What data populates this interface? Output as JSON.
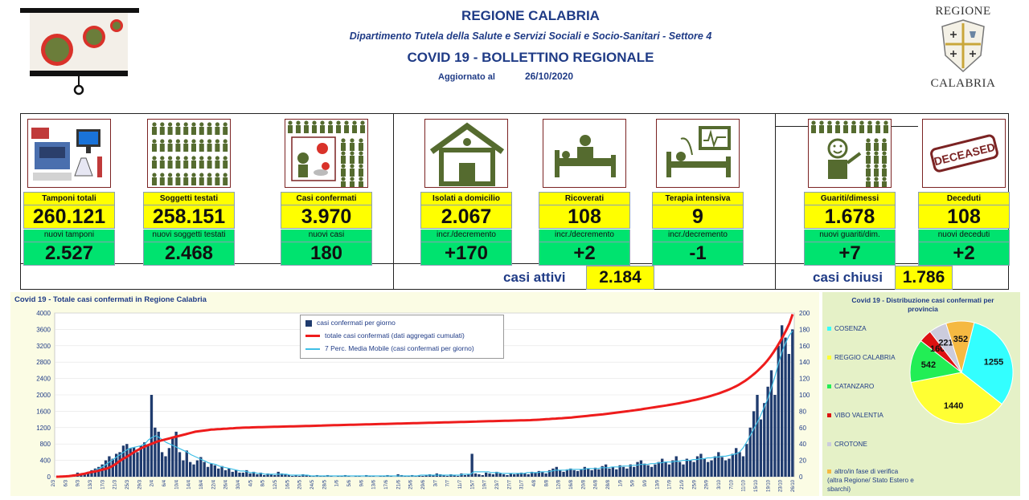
{
  "header": {
    "region": "REGIONE CALABRIA",
    "department": "Dipartimento Tutela della Salute e Servizi Sociali e Socio-Sanitari - Settore 4",
    "bulletin": "COVID 19 - BOLLETTINO REGIONALE",
    "updated_label": "Aggiornato al",
    "updated_date": "26/10/2020",
    "logo_top": "REGIONE",
    "logo_bottom": "CALABRIA"
  },
  "cards": [
    {
      "label": "Tamponi totali",
      "value": "260.121",
      "sublabel": "nuovi tamponi",
      "delta": "2.527",
      "icon": "lab-equipment-icon"
    },
    {
      "label": "Soggetti testati",
      "value": "258.151",
      "sublabel": "nuovi soggetti testati",
      "delta": "2.468",
      "icon": "people-grid-icon"
    },
    {
      "label": "Casi confermati",
      "value": "3.970",
      "sublabel": "nuovi casi",
      "delta": "180",
      "icon": "infected-person-icon"
    },
    {
      "label": "Isolati a domicilio",
      "value": "2.067",
      "sublabel": "incr./decremento",
      "delta": "+170",
      "icon": "house-icon"
    },
    {
      "label": "Ricoverati",
      "value": "108",
      "sublabel": "incr./decremento",
      "delta": "+2",
      "icon": "hospital-bed-icon"
    },
    {
      "label": "Terapia intensiva",
      "value": "9",
      "sublabel": "incr./decremento",
      "delta": "-1",
      "icon": "intensive-care-icon"
    },
    {
      "label": "Guariti/dimessi",
      "value": "1.678",
      "sublabel": "nuovi guariti/dim.",
      "delta": "+7",
      "icon": "recovered-person-icon"
    },
    {
      "label": "Deceduti",
      "value": "108",
      "sublabel": "nuovi deceduti",
      "delta": "+2",
      "icon": "deceased-stamp-icon"
    }
  ],
  "deceased_stamp": "DECEASED",
  "summary": {
    "active_label": "casi attivi",
    "active_value": "2.184",
    "closed_label": "casi chiusi",
    "closed_value": "1.786"
  },
  "colors": {
    "title_blue": "#1f3b86",
    "yellow": "#ffff00",
    "green": "#00e36f",
    "bar_navy": "#1f3b6e",
    "line_red": "#ee1c1c",
    "line_cyan": "#3fbfe6"
  },
  "chart_data": [
    {
      "type": "bar+line",
      "title": "Covid 19 - Totale casi confermati in Regione Calabria",
      "legend": [
        "casi confermati per giorno",
        "totale casi confermati (dati aggregati cumulati)",
        "7 Perc. Media Mobile (casi confermati per giorno)"
      ],
      "legend_position": "top-center",
      "y_left_ticks": [
        "0",
        "400",
        "800",
        "1200",
        "1600",
        "2000",
        "2400",
        "2800",
        "3200",
        "3600",
        "4000"
      ],
      "y_left_range": [
        0,
        4000
      ],
      "y_right_ticks": [
        "0",
        "20",
        "40",
        "60",
        "80",
        "100",
        "120",
        "140",
        "160",
        "180",
        "200"
      ],
      "y_right_range": [
        0,
        200
      ],
      "x_range": [
        "2/3",
        "26/10"
      ],
      "x_ticks": [
        "2/3",
        "6/3",
        "9/3",
        "13/3",
        "17/3",
        "21/3",
        "25/3",
        "29/3",
        "2/4",
        "6/4",
        "10/4",
        "14/4",
        "18/4",
        "22/4",
        "26/4",
        "30/4",
        "4/5",
        "8/5",
        "12/5",
        "16/5",
        "20/5",
        "24/5",
        "28/5",
        "1/6",
        "5/6",
        "9/6",
        "13/6",
        "17/6",
        "21/6",
        "25/6",
        "29/6",
        "3/7",
        "7/7",
        "11/7",
        "15/7",
        "19/7",
        "23/7",
        "27/7",
        "31/7",
        "4/8",
        "8/8",
        "12/8",
        "16/8",
        "20/8",
        "24/8",
        "28/8",
        "1/9",
        "5/9",
        "9/9",
        "13/9",
        "17/9",
        "21/9",
        "25/9",
        "29/9",
        "3/10",
        "7/10",
        "11/10",
        "15/10",
        "19/10",
        "23/10",
        "26/10"
      ],
      "series": [
        {
          "name": "totale casi confermati (dati aggregati cumulati)",
          "axis": "left",
          "values": [
            0,
            2,
            5,
            10,
            15,
            25,
            35,
            45,
            60,
            75,
            95,
            110,
            125,
            140,
            160,
            180,
            200,
            230,
            270,
            320,
            380,
            430,
            470,
            520,
            570,
            620,
            660,
            700,
            735,
            770,
            800,
            830,
            860,
            880,
            900,
            920,
            940,
            960,
            980,
            1000,
            1020,
            1040,
            1060,
            1080,
            1100,
            1110,
            1120,
            1130,
            1140,
            1150,
            1155,
            1160,
            1165,
            1170,
            1175,
            1180,
            1185,
            1190,
            1195,
            1198,
            1200,
            1202,
            1205,
            1208,
            1210,
            1212,
            1214,
            1216,
            1218,
            1220,
            1222,
            1224,
            1226,
            1228,
            1230,
            1232,
            1234,
            1236,
            1238,
            1240,
            1242,
            1244,
            1246,
            1248,
            1250,
            1252,
            1254,
            1256,
            1258,
            1260,
            1262,
            1264,
            1266,
            1268,
            1270,
            1272,
            1274,
            1276,
            1278,
            1280,
            1282,
            1284,
            1286,
            1288,
            1290,
            1292,
            1294,
            1296,
            1298,
            1300,
            1302,
            1304,
            1306,
            1308,
            1310,
            1312,
            1314,
            1316,
            1318,
            1320,
            1322,
            1324,
            1326,
            1328,
            1330,
            1332,
            1334,
            1336,
            1338,
            1340,
            1342,
            1344,
            1346,
            1348,
            1350,
            1352,
            1354,
            1356,
            1358,
            1360,
            1362,
            1364,
            1366,
            1368,
            1370,
            1372,
            1374,
            1376,
            1378,
            1380,
            1383,
            1386,
            1390,
            1395,
            1400,
            1405,
            1410,
            1415,
            1420,
            1425,
            1430,
            1436,
            1442,
            1448,
            1455,
            1462,
            1470,
            1478,
            1486,
            1494,
            1502,
            1510,
            1518,
            1526,
            1535,
            1544,
            1553,
            1562,
            1572,
            1582,
            1592,
            1602,
            1613,
            1624,
            1635,
            1646,
            1658,
            1670,
            1682,
            1694,
            1706,
            1718,
            1730,
            1742,
            1754,
            1766,
            1780,
            1795,
            1810,
            1826,
            1842,
            1858,
            1875,
            1892,
            1910,
            1930,
            1950,
            1972,
            1996,
            2020,
            2046,
            2074,
            2104,
            2136,
            2170,
            2208,
            2250,
            2296,
            2346,
            2400,
            2460,
            2525,
            2595,
            2670,
            2750,
            2840,
            2940,
            3050,
            3170,
            3300,
            3440,
            3590,
            3750,
            3970
          ]
        },
        {
          "name": "casi confermati per giorno",
          "axis": "right",
          "values": [
            0,
            1,
            0,
            1,
            2,
            3,
            5,
            2,
            4,
            6,
            8,
            10,
            12,
            15,
            20,
            25,
            22,
            28,
            30,
            38,
            40,
            35,
            36,
            30,
            38,
            42,
            38,
            100,
            60,
            55,
            30,
            25,
            35,
            48,
            55,
            30,
            20,
            32,
            18,
            15,
            20,
            24,
            18,
            12,
            16,
            14,
            10,
            13,
            8,
            10,
            6,
            8,
            5,
            5,
            8,
            4,
            6,
            3,
            5,
            2,
            4,
            3,
            2,
            6,
            4,
            3,
            2,
            1,
            2,
            1,
            3,
            2,
            1,
            1,
            2,
            1,
            1,
            2,
            1,
            0,
            1,
            1,
            2,
            1,
            0,
            1,
            1,
            0,
            2,
            1,
            1,
            0,
            1,
            1,
            2,
            1,
            0,
            3,
            2,
            1,
            1,
            2,
            1,
            2,
            1,
            2,
            3,
            2,
            4,
            3,
            2,
            1,
            3,
            2,
            1,
            4,
            2,
            3,
            28,
            4,
            3,
            2,
            5,
            4,
            3,
            6,
            4,
            3,
            2,
            4,
            3,
            4,
            5,
            4,
            3,
            6,
            5,
            7,
            6,
            4,
            8,
            10,
            12,
            8,
            6,
            9,
            10,
            8,
            7,
            9,
            12,
            10,
            8,
            11,
            9,
            13,
            15,
            10,
            12,
            9,
            14,
            12,
            10,
            15,
            12,
            18,
            20,
            16,
            14,
            12,
            15,
            18,
            22,
            18,
            15,
            20,
            25,
            18,
            15,
            22,
            20,
            18,
            25,
            28,
            22,
            18,
            20,
            25,
            30,
            24,
            20,
            22,
            28,
            35,
            30,
            25,
            40,
            60,
            80,
            100,
            70,
            90,
            110,
            130,
            100,
            160,
            185,
            170,
            150,
            180
          ]
        },
        {
          "name": "7 Perc. Media Mobile (casi confermati per giorno)",
          "axis": "right",
          "values": [
            0,
            0,
            1,
            1,
            1,
            2,
            3,
            3,
            4,
            5,
            6,
            8,
            10,
            12,
            15,
            18,
            21,
            24,
            27,
            30,
            33,
            35,
            36,
            37,
            38,
            40,
            45,
            48,
            50,
            48,
            45,
            42,
            40,
            38,
            36,
            34,
            32,
            30,
            27,
            25,
            23,
            21,
            19,
            17,
            16,
            15,
            13,
            12,
            11,
            10,
            9,
            8,
            7,
            7,
            6,
            5,
            5,
            4,
            4,
            3,
            3,
            3,
            3,
            3,
            3,
            3,
            2,
            2,
            2,
            2,
            2,
            2,
            1,
            1,
            1,
            1,
            1,
            1,
            1,
            1,
            1,
            1,
            1,
            1,
            1,
            1,
            1,
            1,
            1,
            1,
            1,
            1,
            1,
            1,
            1,
            1,
            1,
            1,
            1,
            1,
            1,
            1,
            1,
            2,
            2,
            2,
            2,
            2,
            2,
            2,
            2,
            2,
            2,
            2,
            2,
            3,
            3,
            3,
            6,
            6,
            6,
            6,
            6,
            5,
            5,
            5,
            4,
            4,
            4,
            4,
            4,
            4,
            4,
            5,
            5,
            5,
            5,
            6,
            6,
            6,
            7,
            8,
            8,
            8,
            8,
            9,
            9,
            9,
            9,
            9,
            10,
            10,
            10,
            10,
            11,
            11,
            11,
            12,
            12,
            12,
            13,
            13,
            13,
            14,
            14,
            15,
            15,
            15,
            16,
            16,
            17,
            17,
            18,
            18,
            18,
            19,
            19,
            20,
            20,
            20,
            21,
            21,
            22,
            22,
            23,
            23,
            24,
            24,
            25,
            25,
            26,
            27,
            28,
            30,
            35,
            42,
            50,
            58,
            66,
            75,
            85,
            95,
            108,
            122,
            138,
            152,
            163,
            172,
            178
          ]
        }
      ]
    },
    {
      "type": "pie",
      "title": "Covid 19 - Distribuzione casi confermati per provincia",
      "legend_position": "left",
      "slices": [
        {
          "name": "COSENZA",
          "value": 1255,
          "color": "#33ffff"
        },
        {
          "name": "REGGIO CALABRIA",
          "value": 1440,
          "color": "#ffff33"
        },
        {
          "name": "CATANZARO",
          "value": 542,
          "color": "#22ee55"
        },
        {
          "name": "VIBO VALENTIA",
          "value": 160,
          "color": "#dd1111"
        },
        {
          "name": "CROTONE",
          "value": 221,
          "color": "#ccccdd"
        },
        {
          "name": "altro/in fase di verifica (altra Regione/ Stato Estero e sbarchi)",
          "value": 352,
          "color": "#f5b942"
        }
      ]
    }
  ]
}
